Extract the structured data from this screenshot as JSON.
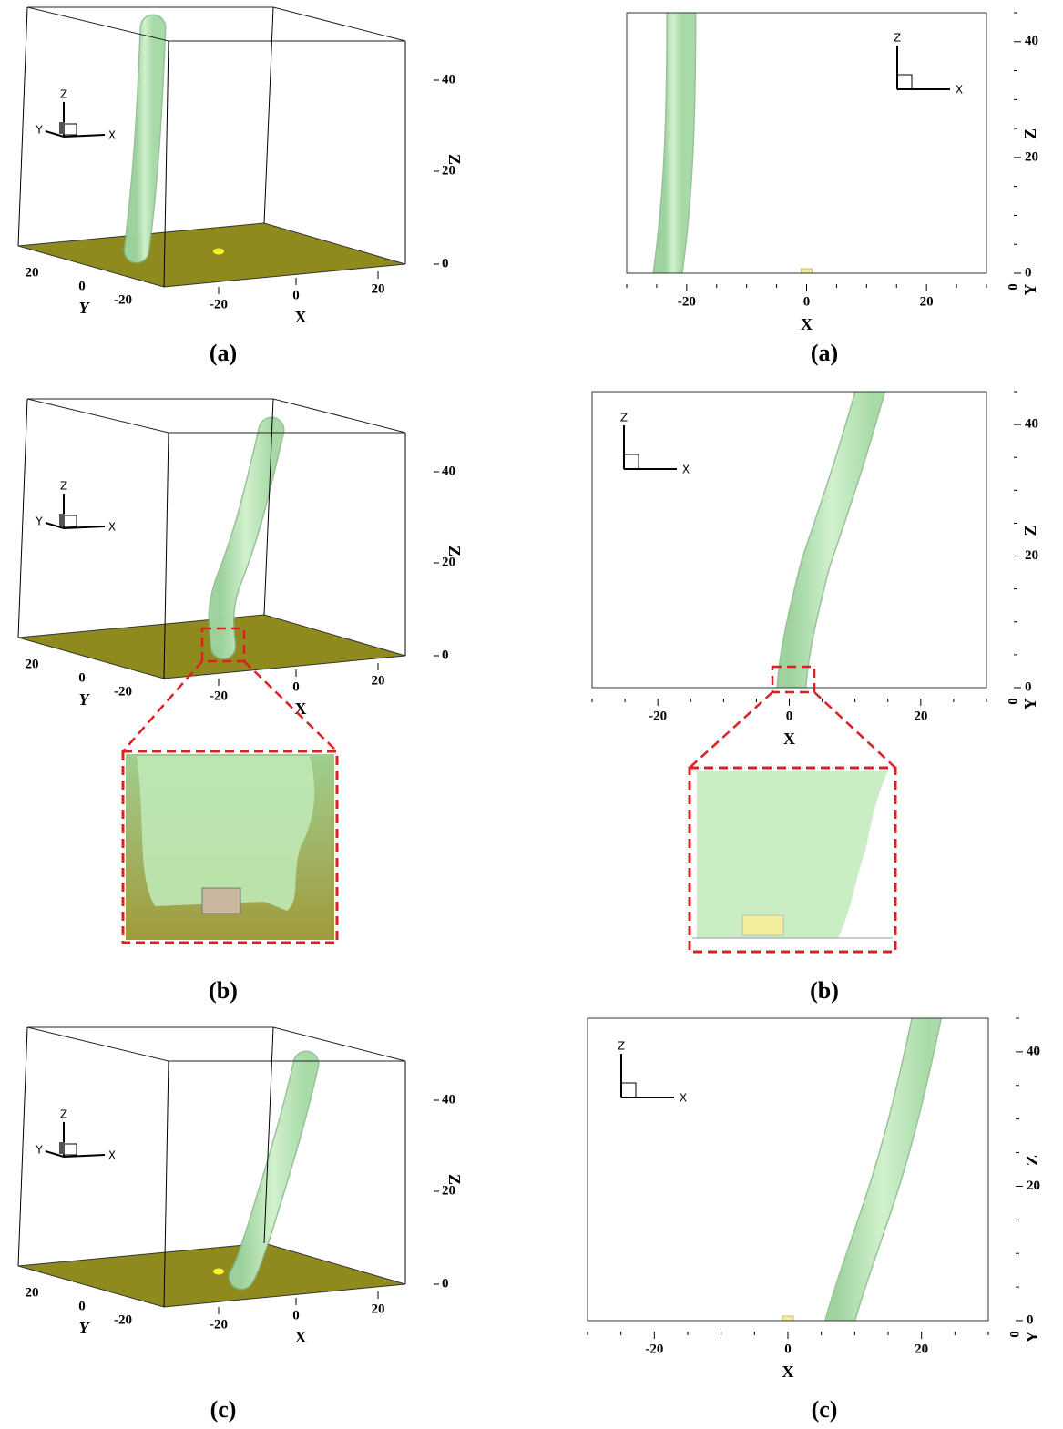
{
  "panels": [
    {
      "caption": "(a)",
      "z_ticks": [
        "40",
        "20",
        "0"
      ],
      "z_label": "Z",
      "x_ticks": [
        "-20",
        "0",
        "20"
      ],
      "x_label": "X",
      "y_ticks": [
        "20",
        "0",
        "-20"
      ],
      "y_label": "Y",
      "triad": [
        "Z",
        "Y",
        "X"
      ]
    },
    {
      "caption": "(a)",
      "z_ticks": [
        "40",
        "20",
        "0"
      ],
      "z_label": "Z",
      "y_tick": "0",
      "y_label": "Y",
      "x_ticks": [
        "-20",
        "0",
        "20"
      ],
      "x_label": "X",
      "triad": [
        "Z",
        "X"
      ]
    },
    {
      "caption": "(b)",
      "z_ticks": [
        "40",
        "20",
        "0"
      ],
      "z_label": "Z",
      "x_ticks": [
        "-20",
        "0",
        "20"
      ],
      "x_label": "X",
      "y_ticks": [
        "20",
        "0",
        "-20"
      ],
      "y_label": "Y",
      "triad": [
        "Z",
        "Y",
        "X"
      ]
    },
    {
      "caption": "(b)",
      "z_ticks": [
        "40",
        "20",
        "0"
      ],
      "z_label": "Z",
      "y_tick": "0",
      "y_label": "Y",
      "x_ticks": [
        "-20",
        "0",
        "20"
      ],
      "x_label": "X",
      "triad": [
        "Z",
        "X"
      ]
    },
    {
      "caption": "(c)",
      "z_ticks": [
        "40",
        "20",
        "0"
      ],
      "z_label": "Z",
      "x_ticks": [
        "-20",
        "0",
        "20"
      ],
      "x_label": "X",
      "y_ticks": [
        "20",
        "0",
        "-20"
      ],
      "y_label": "Y",
      "triad": [
        "Z",
        "Y",
        "X"
      ]
    },
    {
      "caption": "(c)",
      "z_ticks": [
        "40",
        "20",
        "0"
      ],
      "z_label": "Z",
      "y_tick": "0",
      "y_label": "Y",
      "x_ticks": [
        "-20",
        "0",
        "20"
      ],
      "x_label": "X",
      "triad": [
        "Z",
        "X"
      ]
    }
  ]
}
